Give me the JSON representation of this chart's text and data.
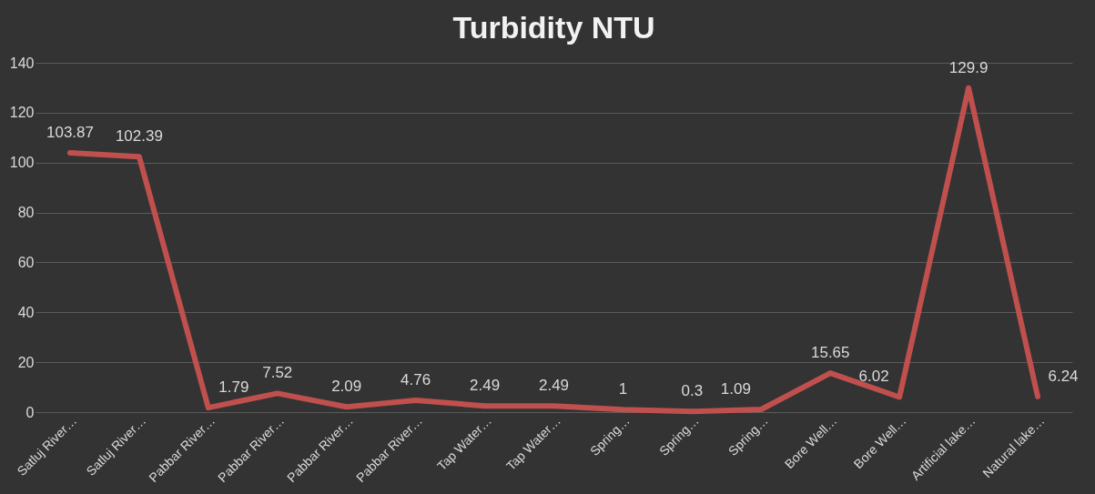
{
  "chart_data": {
    "type": "line",
    "title": "Turbidity NTU",
    "categories": [
      "Satluj River…",
      "Satluj River…",
      "Pabbar River…",
      "Pabbar River…",
      "Pabbar River…",
      "Pabbar River…",
      "Tap Water…",
      "Tap Water…",
      "Spring…",
      "Spring…",
      "Spring…",
      "Bore Well…",
      "Bore Well…",
      "Artificial lake…",
      "Natural lake…"
    ],
    "series": [
      {
        "color": "#c0504d",
        "values": [
          103.87,
          102.39,
          1.79,
          7.52,
          2.09,
          4.76,
          2.49,
          2.49,
          1,
          0.3,
          1.09,
          15.65,
          6.02,
          129.9,
          6.24
        ]
      }
    ],
    "ylim": [
      0,
      140
    ],
    "yticks": [
      0,
      20,
      40,
      60,
      80,
      100,
      120,
      140
    ],
    "grid": "y",
    "legend": false,
    "marker": "none",
    "line_style": "solid",
    "data_labels": true
  }
}
